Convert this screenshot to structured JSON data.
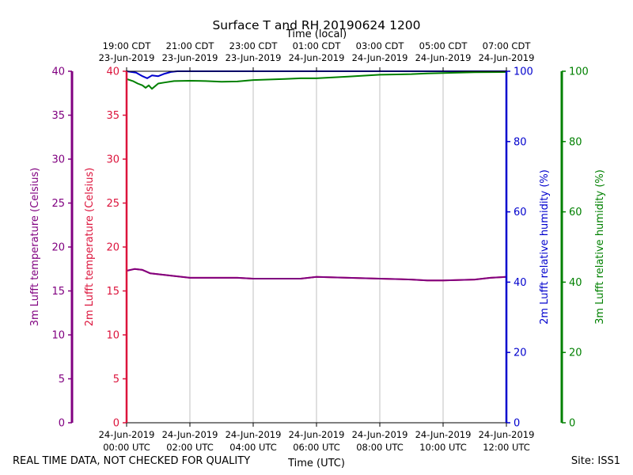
{
  "chart_data": {
    "type": "line",
    "title": "Surface T and RH 20190624 1200",
    "top_xlabel": "Time (local)",
    "xlabel": "Time (UTC)",
    "xlim_hours": [
      0,
      12
    ],
    "bottom_ticks": [
      {
        "hour": 0,
        "line1": "24-Jun-2019",
        "line2": "00:00 UTC"
      },
      {
        "hour": 2,
        "line1": "24-Jun-2019",
        "line2": "02:00 UTC"
      },
      {
        "hour": 4,
        "line1": "24-Jun-2019",
        "line2": "04:00 UTC"
      },
      {
        "hour": 6,
        "line1": "24-Jun-2019",
        "line2": "06:00 UTC"
      },
      {
        "hour": 8,
        "line1": "24-Jun-2019",
        "line2": "08:00 UTC"
      },
      {
        "hour": 10,
        "line1": "24-Jun-2019",
        "line2": "10:00 UTC"
      },
      {
        "hour": 12,
        "line1": "24-Jun-2019",
        "line2": "12:00 UTC"
      }
    ],
    "top_ticks": [
      {
        "hour": 0,
        "line1": "19:00 CDT",
        "line2": "23-Jun-2019"
      },
      {
        "hour": 2,
        "line1": "21:00 CDT",
        "line2": "23-Jun-2019"
      },
      {
        "hour": 4,
        "line1": "23:00 CDT",
        "line2": "23-Jun-2019"
      },
      {
        "hour": 6,
        "line1": "01:00 CDT",
        "line2": "24-Jun-2019"
      },
      {
        "hour": 8,
        "line1": "03:00 CDT",
        "line2": "24-Jun-2019"
      },
      {
        "hour": 10,
        "line1": "05:00 CDT",
        "line2": "24-Jun-2019"
      },
      {
        "hour": 12,
        "line1": "07:00 CDT",
        "line2": "24-Jun-2019"
      }
    ],
    "axes": {
      "temp3m": {
        "label": "3m Lufft temperature (Celsius)",
        "color": "#800080",
        "ylim": [
          0,
          40
        ],
        "ticks": [
          0,
          5,
          10,
          15,
          20,
          25,
          30,
          35,
          40
        ]
      },
      "temp2m": {
        "label": "2m Lufft temperature (Celsius)",
        "color": "#dc143c",
        "ylim": [
          0,
          40
        ],
        "ticks": [
          0,
          5,
          10,
          15,
          20,
          25,
          30,
          35,
          40
        ]
      },
      "rh2m": {
        "label": "2m Lufft relative humidity (%)",
        "color": "#0000cd",
        "ylim": [
          0,
          100
        ],
        "ticks": [
          0,
          20,
          40,
          60,
          80,
          100
        ]
      },
      "rh3m": {
        "label": "3m Lufft relative humidity (%)",
        "color": "#008000",
        "ylim": [
          0,
          100
        ],
        "ticks": [
          0,
          20,
          40,
          60,
          80,
          100
        ]
      }
    },
    "grid": "vertical",
    "series": [
      {
        "name": "2m Lufft temperature",
        "axis": "temp2m",
        "color": "#dc143c",
        "x": [
          0,
          0.25,
          0.5,
          0.75,
          1.0,
          1.5,
          2.0,
          2.5,
          3.0,
          3.5,
          4.0,
          5.0,
          5.5,
          6.0,
          7.0,
          8.0,
          9.0,
          9.5,
          10.0,
          11.0,
          11.5,
          12.0
        ],
        "values": [
          17.3,
          17.5,
          17.4,
          17.0,
          16.9,
          16.7,
          16.5,
          16.5,
          16.5,
          16.5,
          16.4,
          16.4,
          16.4,
          16.6,
          16.5,
          16.4,
          16.3,
          16.2,
          16.2,
          16.3,
          16.5,
          16.6
        ]
      },
      {
        "name": "3m Lufft temperature",
        "axis": "temp3m",
        "color": "#800080",
        "x": [
          0,
          0.25,
          0.5,
          0.75,
          1.0,
          1.5,
          2.0,
          2.5,
          3.0,
          3.5,
          4.0,
          5.0,
          5.5,
          6.0,
          7.0,
          8.0,
          9.0,
          9.5,
          10.0,
          11.0,
          11.5,
          12.0
        ],
        "values": [
          17.3,
          17.5,
          17.4,
          17.0,
          16.9,
          16.7,
          16.5,
          16.5,
          16.5,
          16.5,
          16.4,
          16.4,
          16.4,
          16.6,
          16.5,
          16.4,
          16.3,
          16.2,
          16.2,
          16.3,
          16.5,
          16.6
        ]
      },
      {
        "name": "2m Lufft relative humidity",
        "axis": "rh2m",
        "color": "#0000cd",
        "x": [
          0,
          0.3,
          0.5,
          0.65,
          0.8,
          1.0,
          1.2,
          1.4,
          1.6,
          12.0
        ],
        "values": [
          100,
          99.6,
          98.6,
          98.0,
          98.8,
          98.6,
          99.3,
          99.8,
          100,
          100
        ]
      },
      {
        "name": "3m Lufft relative humidity",
        "axis": "rh3m",
        "color": "#008000",
        "x": [
          0,
          0.2,
          0.35,
          0.5,
          0.6,
          0.7,
          0.8,
          1.0,
          1.2,
          1.5,
          2.0,
          2.5,
          3.0,
          3.5,
          4.0,
          5.0,
          5.5,
          6.0,
          7.0,
          8.0,
          9.0,
          9.5,
          10.0,
          11.0,
          12.0
        ],
        "values": [
          97.8,
          97.2,
          96.5,
          96.0,
          95.3,
          96.0,
          95.0,
          96.5,
          96.8,
          97.2,
          97.3,
          97.2,
          97.0,
          97.1,
          97.5,
          97.8,
          98.0,
          98.0,
          98.5,
          99.0,
          99.2,
          99.4,
          99.5,
          99.7,
          99.8
        ]
      }
    ]
  },
  "footer": {
    "left": "REAL TIME DATA, NOT CHECKED FOR QUALITY",
    "right": "Site: ISS1"
  }
}
